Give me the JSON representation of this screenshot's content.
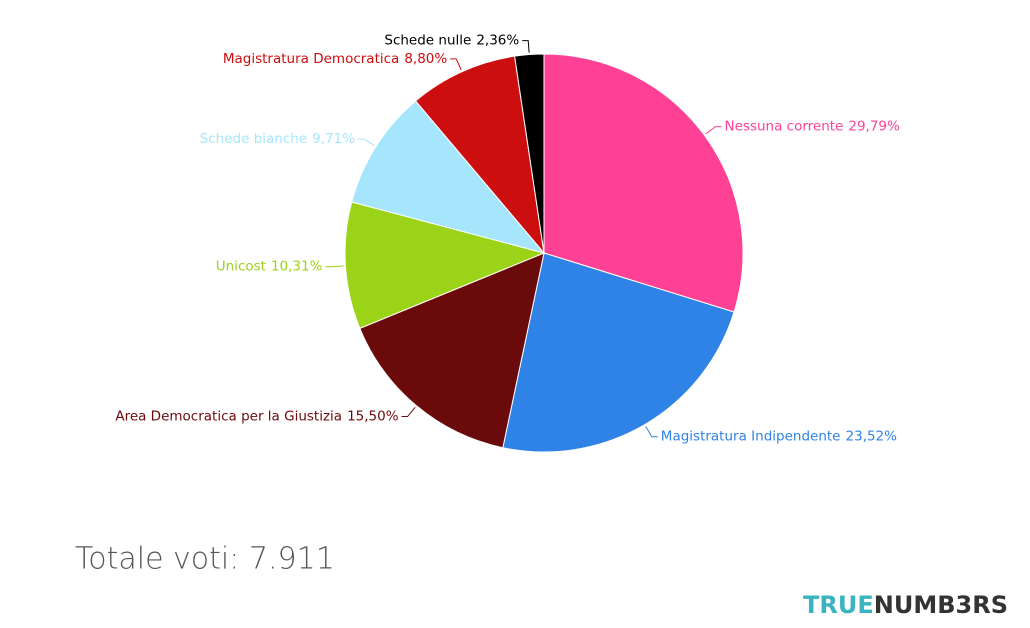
{
  "chart_data": {
    "type": "pie",
    "categories": [
      "Nessuna corrente",
      "Magistratura Indipendente",
      "Area Democratica per la Giustizia",
      "Unicost",
      "Schede bianche",
      "Magistratura Democratica",
      "Schede nulle"
    ],
    "values": [
      29.79,
      23.52,
      15.5,
      10.31,
      9.71,
      8.8,
      2.36
    ],
    "value_labels": [
      "29,79%",
      "23,52%",
      "15,50%",
      "10,31%",
      "9,71%",
      "8,80%",
      "2,36%"
    ],
    "colors": [
      "#ff4196",
      "#3083e6",
      "#6b0a0a",
      "#9bd318",
      "#a6e6fc",
      "#cc0e0e",
      "#000000"
    ],
    "annotation": "Totale voti: 7.911",
    "logo": [
      "TRUE",
      "NUMB3RS"
    ]
  }
}
